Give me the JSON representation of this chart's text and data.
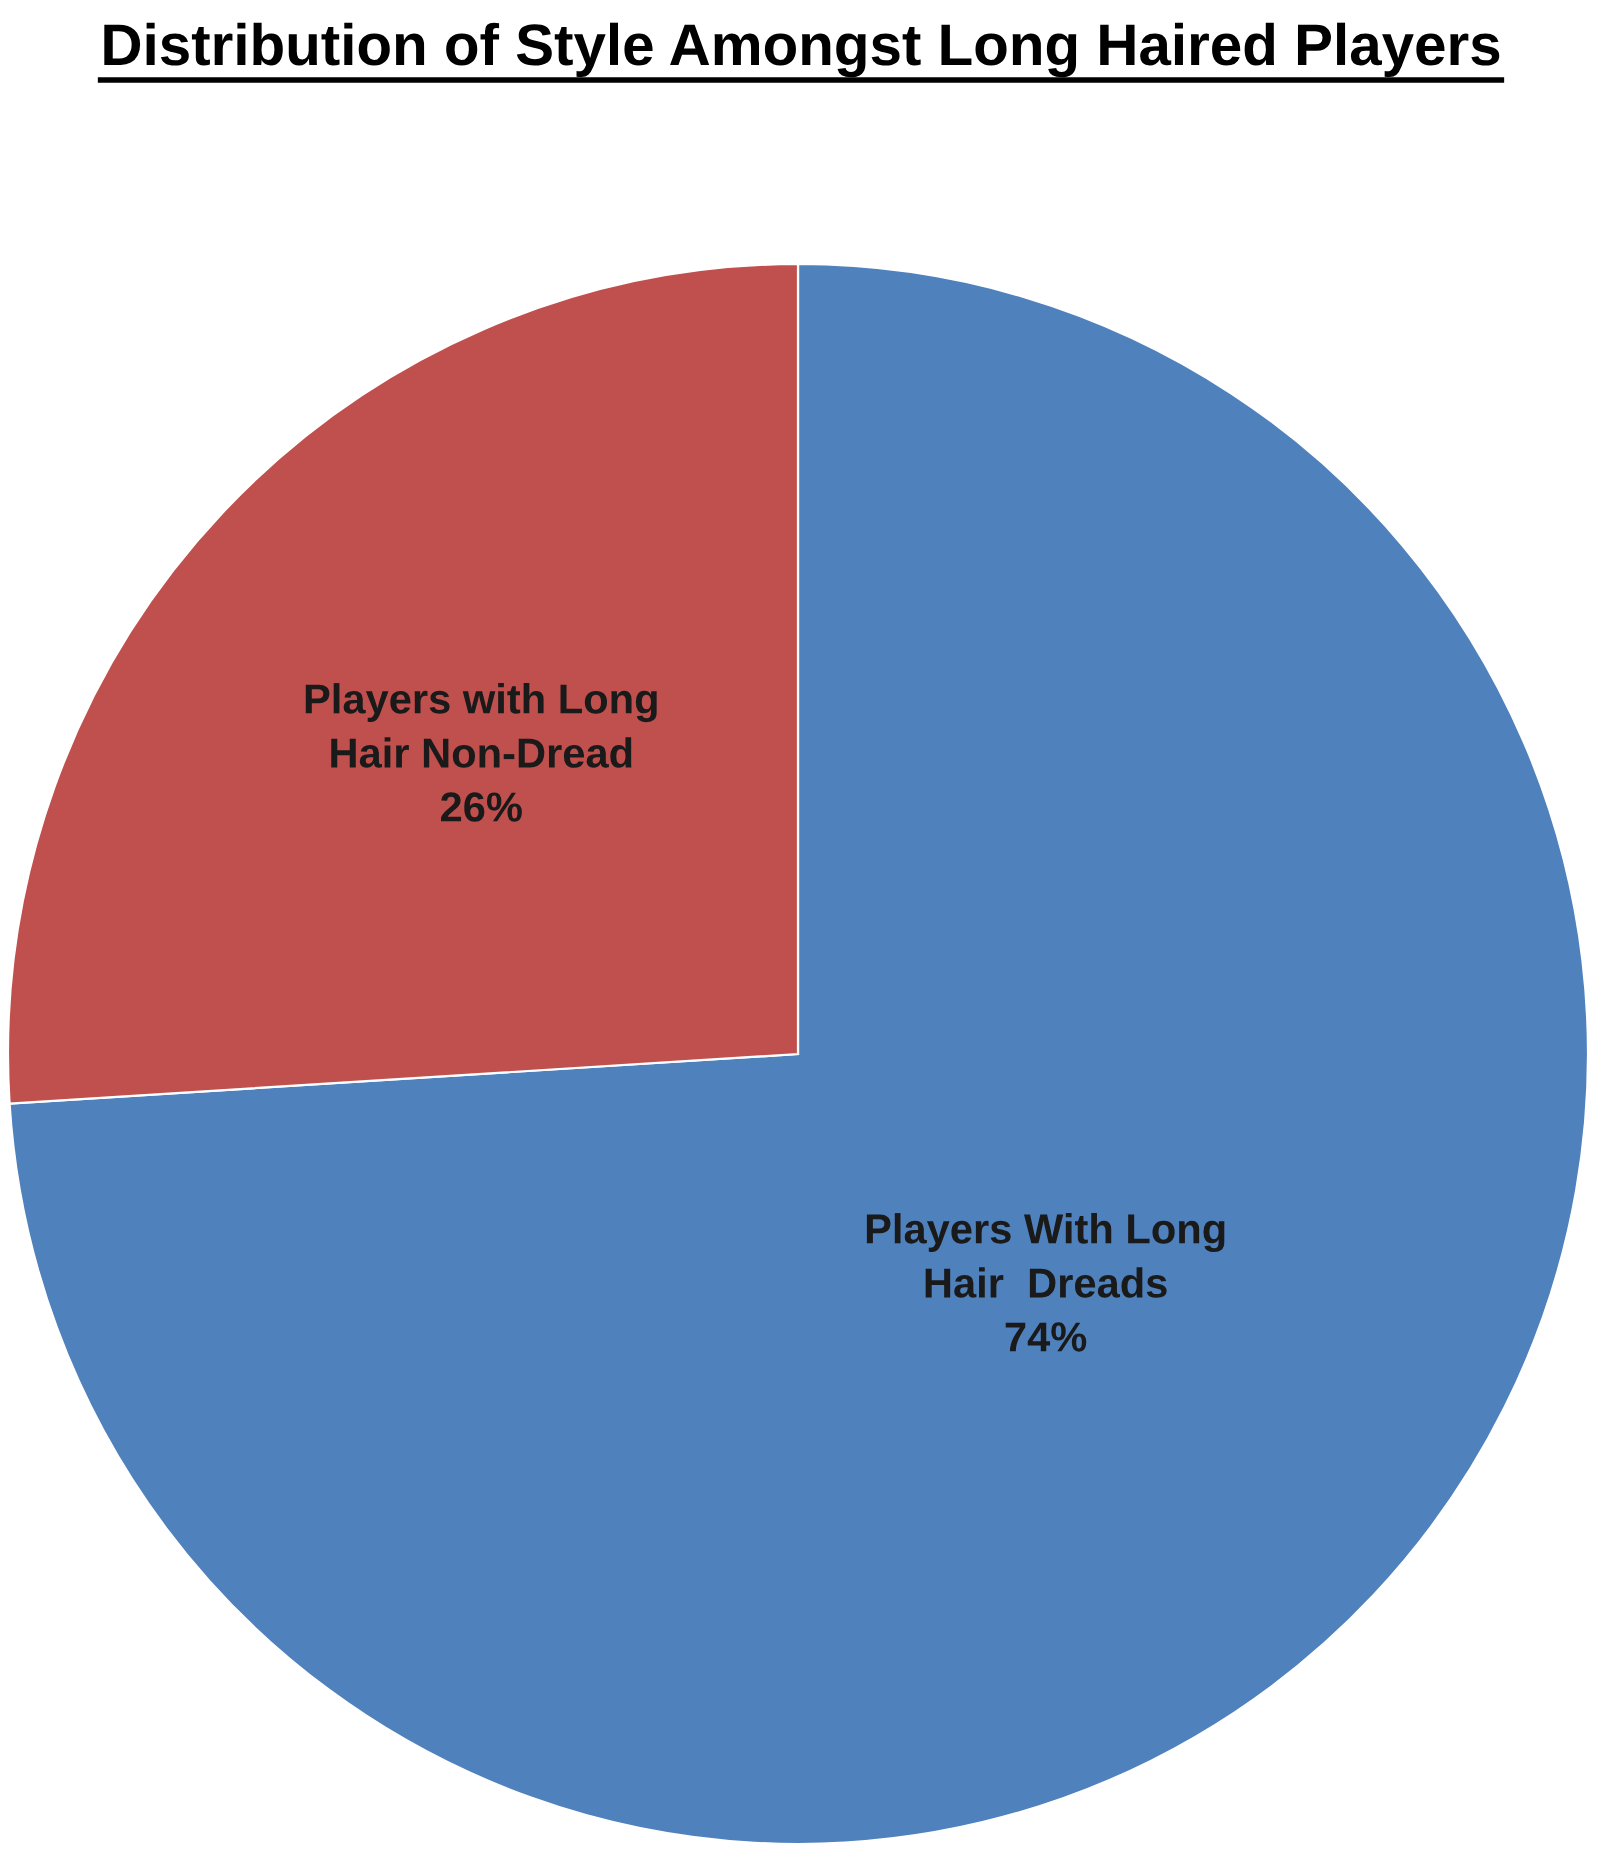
{
  "chart_data": {
    "type": "pie",
    "title": "Distribution of Style Amongst Long Haired Players",
    "categories": [
      "Players With Long\nHair  Dreads",
      "Players with Long\nHair Non-Dread"
    ],
    "values": [
      74,
      26
    ],
    "colors": [
      "#4f81bd",
      "#c0504d"
    ],
    "value_labels": [
      "74%",
      "26%"
    ],
    "legend": false
  }
}
